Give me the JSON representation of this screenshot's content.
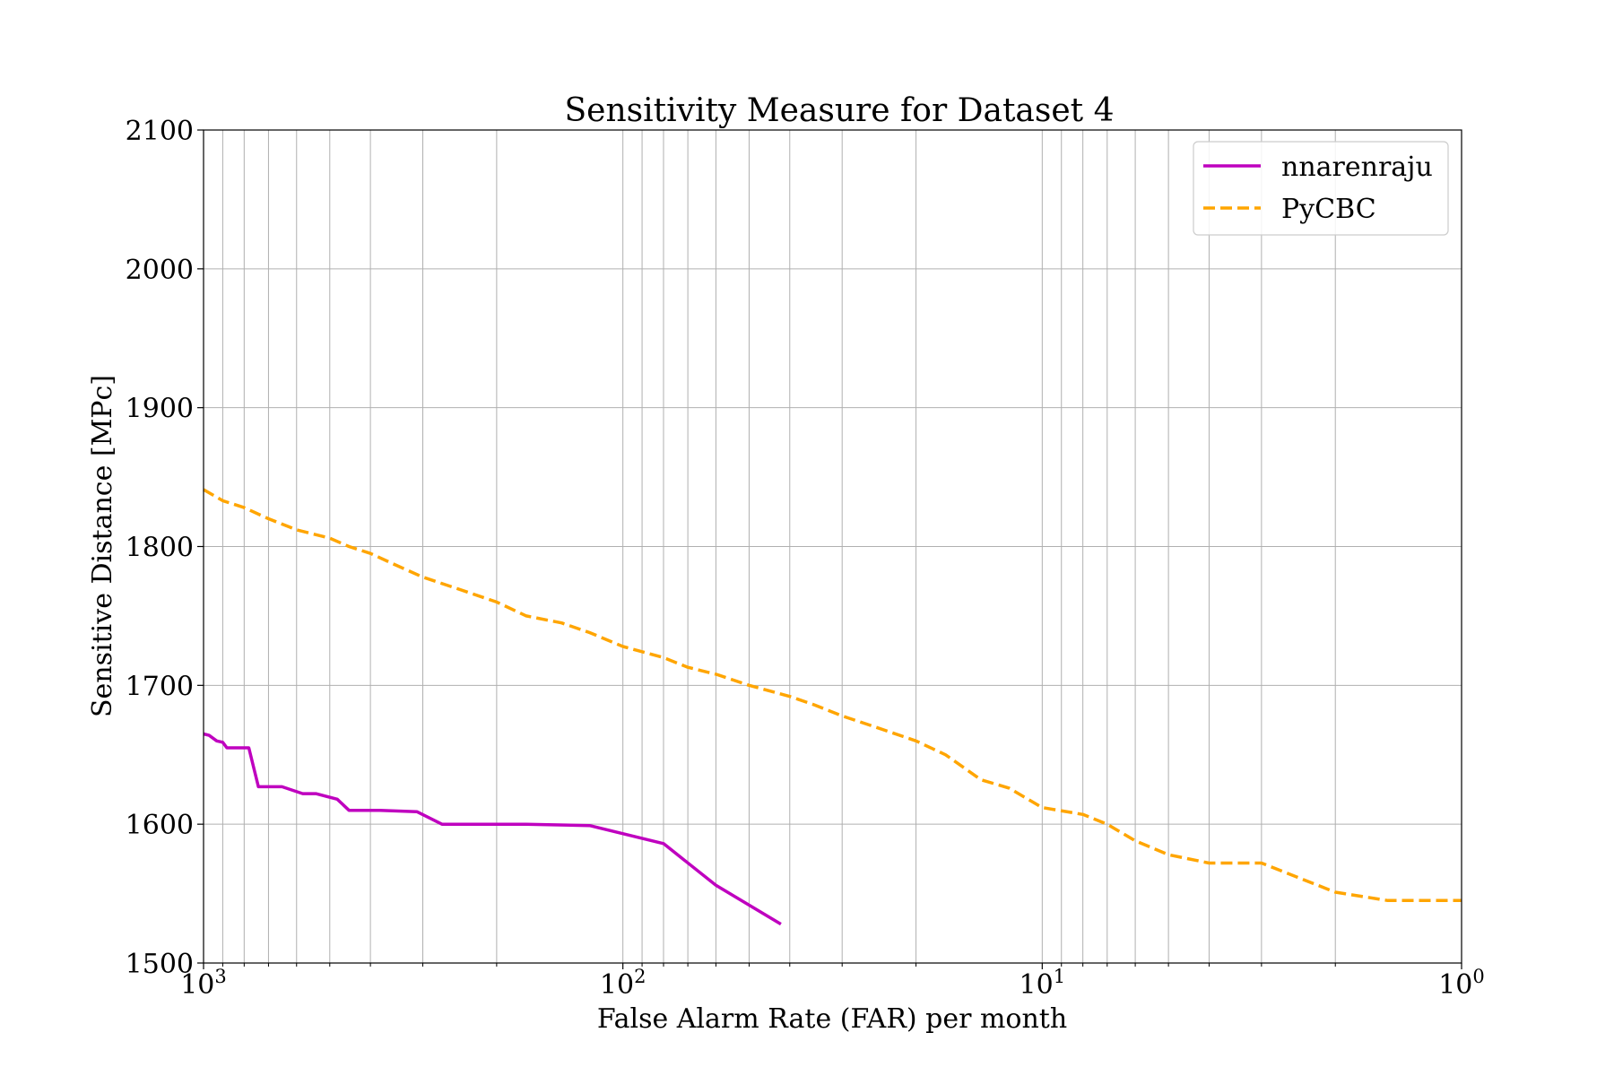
{
  "chart_data": {
    "type": "line",
    "title": "Sensitivity Measure for Dataset 4",
    "xlabel": "False Alarm Rate (FAR) per month",
    "ylabel": "Sensitive Distance [MPc]",
    "x_scale": "log",
    "x_reversed": true,
    "xlim": [
      1000,
      1
    ],
    "ylim": [
      1500,
      2100
    ],
    "grid": true,
    "legend": "top-right",
    "x_ticks": [
      {
        "value": 1000,
        "base": "10",
        "exp": "3"
      },
      {
        "value": 100,
        "base": "10",
        "exp": "2"
      },
      {
        "value": 10,
        "base": "10",
        "exp": "1"
      },
      {
        "value": 1,
        "base": "10",
        "exp": "0"
      }
    ],
    "y_ticks": [
      "1500",
      "1600",
      "1700",
      "1800",
      "1900",
      "2000",
      "2100"
    ],
    "series": [
      {
        "name": "nnarenraju",
        "color": "#bf00bf",
        "style": "solid",
        "x": [
          1000,
          970,
          930,
          900,
          880,
          840,
          780,
          740,
          650,
          580,
          540,
          480,
          450,
          380,
          310,
          270,
          170,
          120,
          80,
          60,
          42
        ],
        "y": [
          1665,
          1664,
          1660,
          1659,
          1655,
          1655,
          1655,
          1627,
          1627,
          1622,
          1622,
          1618,
          1610,
          1610,
          1609,
          1600,
          1600,
          1599,
          1586,
          1556,
          1528
        ]
      },
      {
        "name": "PyCBC",
        "color": "#ffa500",
        "style": "dashed",
        "x": [
          1000,
          900,
          800,
          700,
          600,
          500,
          450,
          400,
          350,
          300,
          250,
          200,
          170,
          140,
          120,
          100,
          80,
          70,
          60,
          50,
          40,
          35,
          30,
          25,
          20,
          17,
          14,
          12,
          10,
          8,
          7,
          6,
          5,
          4,
          3,
          2,
          1.5,
          1
        ],
        "y": [
          1841,
          1833,
          1828,
          1820,
          1812,
          1806,
          1800,
          1795,
          1787,
          1778,
          1770,
          1760,
          1750,
          1745,
          1738,
          1728,
          1720,
          1713,
          1708,
          1700,
          1692,
          1686,
          1678,
          1670,
          1660,
          1650,
          1632,
          1626,
          1612,
          1607,
          1600,
          1588,
          1578,
          1572,
          1572,
          1551,
          1545,
          1545
        ]
      }
    ]
  }
}
